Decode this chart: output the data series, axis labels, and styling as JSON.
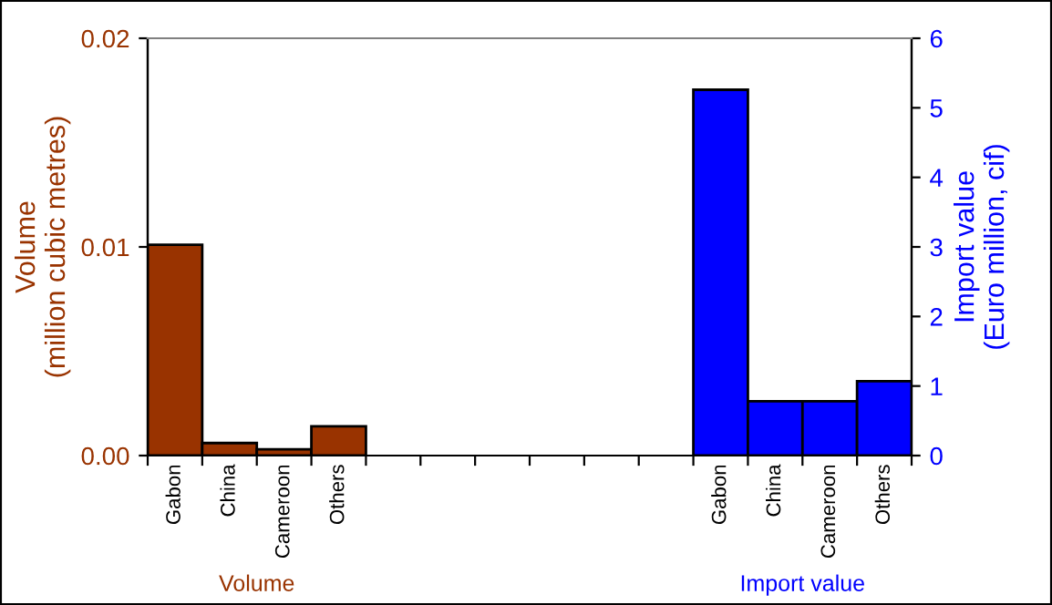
{
  "chart_data": {
    "type": "bar",
    "ylabel": "Volume\n(million cubic metres)",
    "y2label": "Import value\n(Euro million, cif)",
    "categories": [
      "Gabon",
      "China",
      "Cameroon",
      "Others",
      null,
      null,
      null,
      null,
      null,
      null,
      "Gabon",
      "China",
      "Cameroon",
      "Others"
    ],
    "series": [
      {
        "color": "#993300",
        "values": [
          0.0101,
          0.0006,
          0.0003,
          0.0014,
          null,
          null,
          null,
          null,
          null,
          null,
          null,
          null,
          null,
          null
        ]
      },
      {
        "color": "#0000ff",
        "axis": "y2",
        "values": [
          null,
          null,
          null,
          null,
          null,
          null,
          null,
          null,
          null,
          null,
          5.26,
          0.78,
          0.78,
          1.07
        ]
      }
    ],
    "ylim": [
      0,
      0.02
    ],
    "yticks": [
      {
        "value": 0,
        "label": "0.00"
      },
      {
        "value": 0.01,
        "label": "0.01"
      },
      {
        "value": 0.02,
        "label": "0.02"
      }
    ],
    "y2lim": [
      0,
      6
    ],
    "y2ticks": [
      0,
      1,
      2,
      3,
      4,
      5,
      6
    ],
    "annotations": [
      "Volume",
      "Import value"
    ]
  }
}
